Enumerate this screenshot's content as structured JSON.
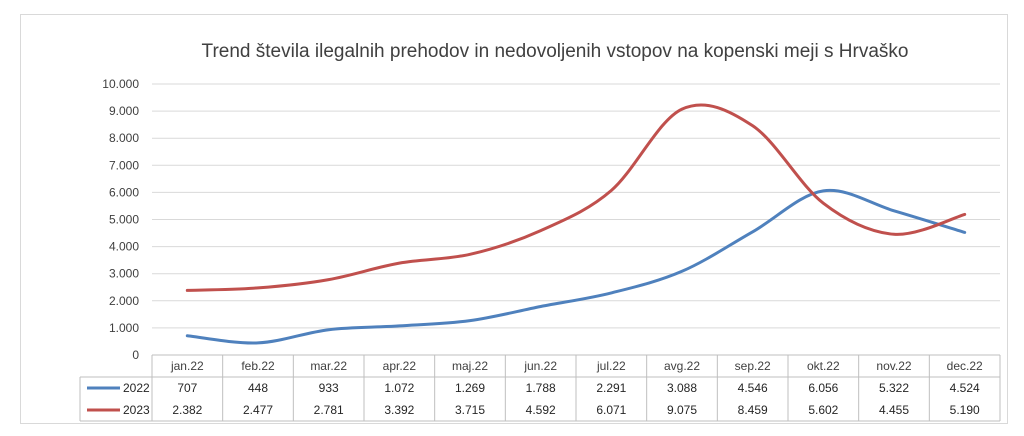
{
  "chart_data": {
    "type": "line",
    "title": "Trend števila ilegalnih prehodov in nedovoljenih vstopov na kopenski meji s Hrvaško",
    "categories": [
      "jan.22",
      "feb.22",
      "mar.22",
      "apr.22",
      "maj.22",
      "jun.22",
      "jul.22",
      "avg.22",
      "sep.22",
      "okt.22",
      "nov.22",
      "dec.22"
    ],
    "y_ticks": [
      "0",
      "1.000",
      "2.000",
      "3.000",
      "4.000",
      "5.000",
      "6.000",
      "7.000",
      "8.000",
      "9.000",
      "10.000"
    ],
    "ylim": [
      0,
      10000
    ],
    "grid": true,
    "legend": "bottom-table",
    "series": [
      {
        "name": "2022",
        "color": "#4f81bd",
        "values": [
          707,
          448,
          933,
          1072,
          1269,
          1788,
          2291,
          3088,
          4546,
          6056,
          5322,
          4524
        ],
        "labels": [
          "707",
          "448",
          "933",
          "1.072",
          "1.269",
          "1.788",
          "2.291",
          "3.088",
          "4.546",
          "6.056",
          "5.322",
          "4.524"
        ]
      },
      {
        "name": "2023",
        "color": "#c0504d",
        "values": [
          2382,
          2477,
          2781,
          3392,
          3715,
          4592,
          6071,
          9075,
          8459,
          5602,
          4455,
          5190
        ],
        "labels": [
          "2.382",
          "2.477",
          "2.781",
          "3.392",
          "3.715",
          "4.592",
          "6.071",
          "9.075",
          "8.459",
          "5.602",
          "4.455",
          "5.190"
        ]
      }
    ]
  }
}
